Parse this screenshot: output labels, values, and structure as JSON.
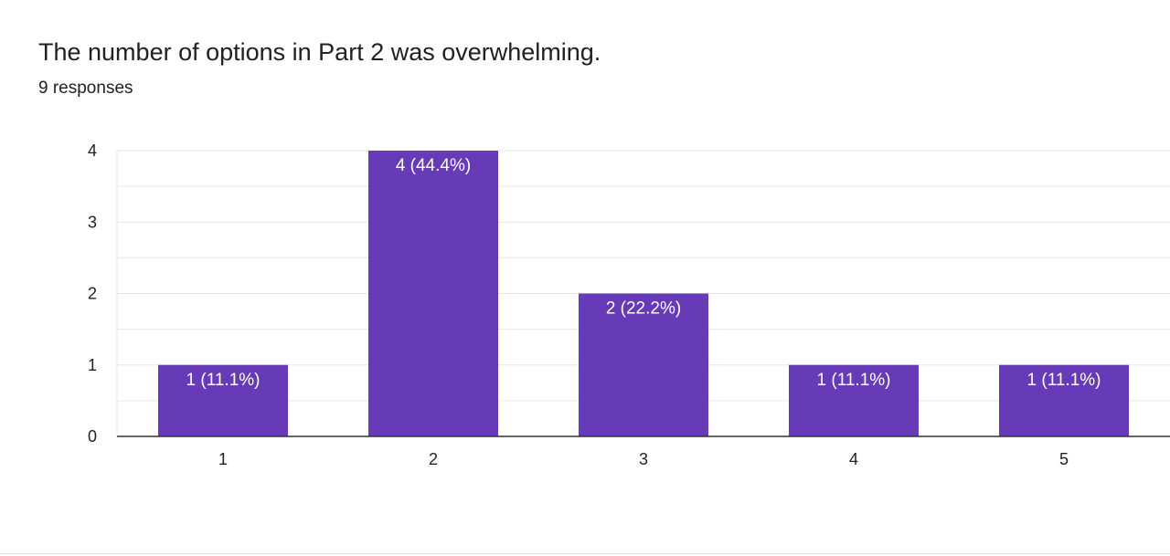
{
  "question": {
    "title": "The number of options in Part 2 was overwhelming.",
    "responses": "9 responses"
  },
  "colors": {
    "bar": "#673ab7",
    "gridline": "#e6e6e6",
    "axis": "#333333",
    "label_text": "#ffffff"
  },
  "chart_data": {
    "type": "bar",
    "categories": [
      "1",
      "2",
      "3",
      "4",
      "5"
    ],
    "values": [
      1,
      4,
      2,
      1,
      1
    ],
    "data_labels": [
      "1 (11.1%)",
      "4 (44.4%)",
      "2 (22.2%)",
      "1 (11.1%)",
      "1 (11.1%)"
    ],
    "ylim": [
      0,
      4
    ],
    "yticks": [
      "0",
      "1",
      "2",
      "3",
      "4"
    ],
    "grid": true,
    "legend": "none"
  }
}
